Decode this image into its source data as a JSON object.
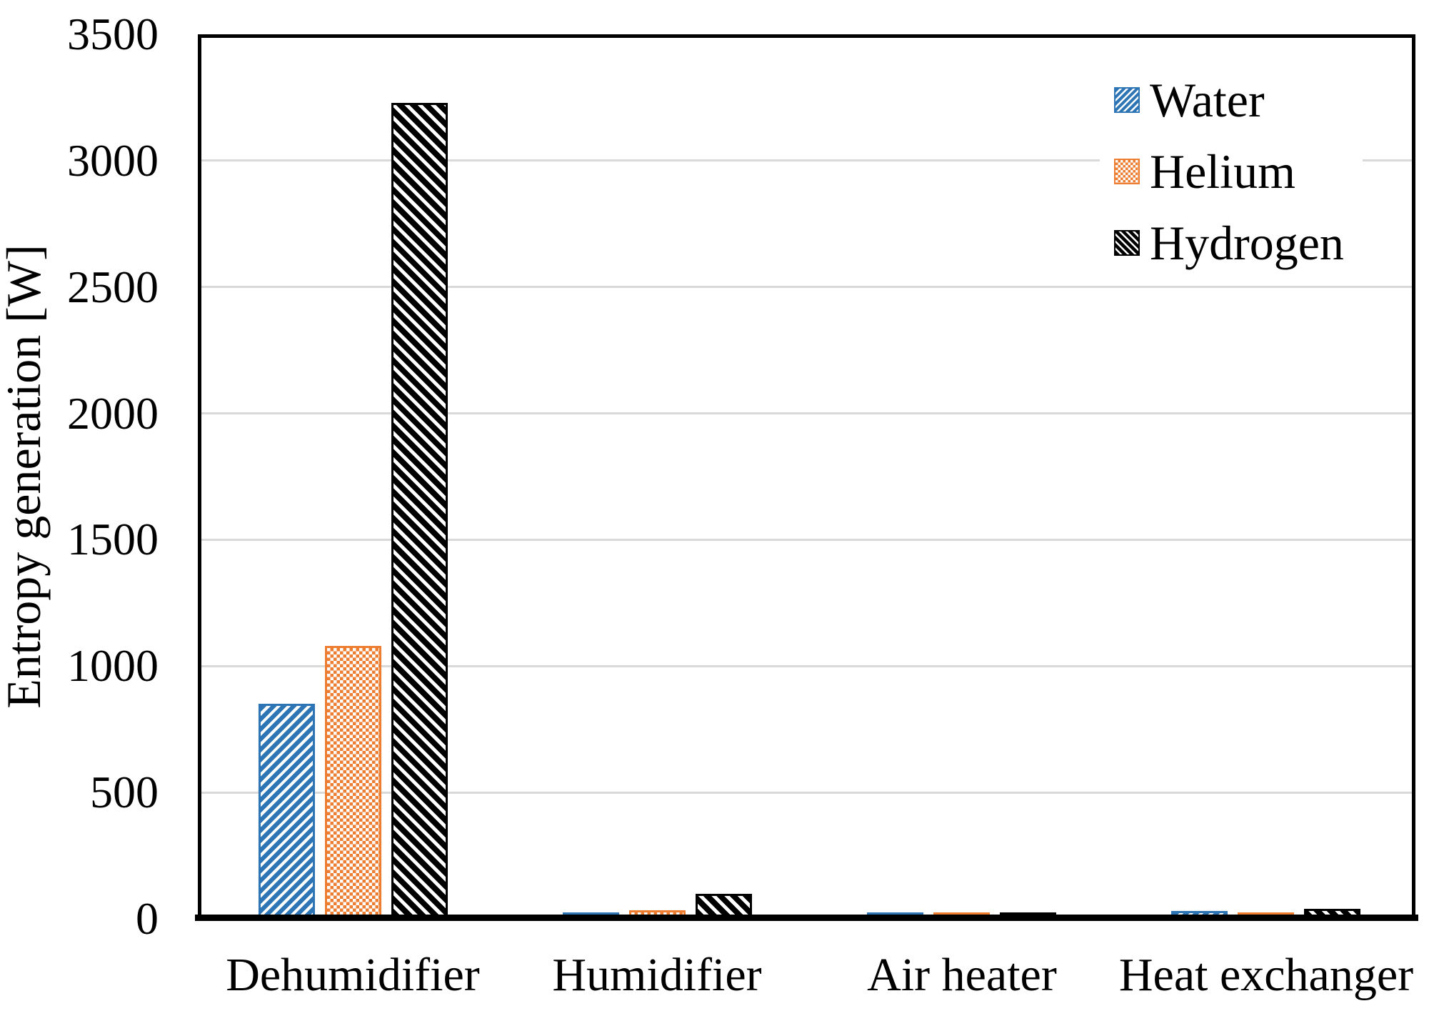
{
  "chart_data": {
    "type": "bar",
    "title": "",
    "xlabel": "",
    "ylabel": "Entropy generation [W]",
    "categories": [
      "Dehumidifier",
      "Humidifier",
      "Air heater",
      "Heat exchanger"
    ],
    "series": [
      {
        "name": "Water",
        "color": "#2E75B6",
        "pattern": "diagonal-up",
        "values": [
          850,
          25,
          25,
          30
        ]
      },
      {
        "name": "Helium",
        "color": "#ED7D31",
        "pattern": "checker",
        "values": [
          1080,
          35,
          25,
          25
        ]
      },
      {
        "name": "Hydrogen",
        "color": "#000000",
        "pattern": "diagonal-down",
        "values": [
          3230,
          100,
          25,
          40
        ]
      }
    ],
    "ylim": [
      0,
      3500
    ],
    "ytick_step": 500,
    "yticks": [
      0,
      500,
      1000,
      1500,
      2000,
      2500,
      3000,
      3500
    ],
    "grid": true,
    "gridline_color": "#D9D9D9",
    "axis_color": "#000000",
    "background": "#FFFFFF",
    "legend_position": "top-right",
    "legend": [
      "Water",
      "Helium",
      "Hydrogen"
    ]
  }
}
